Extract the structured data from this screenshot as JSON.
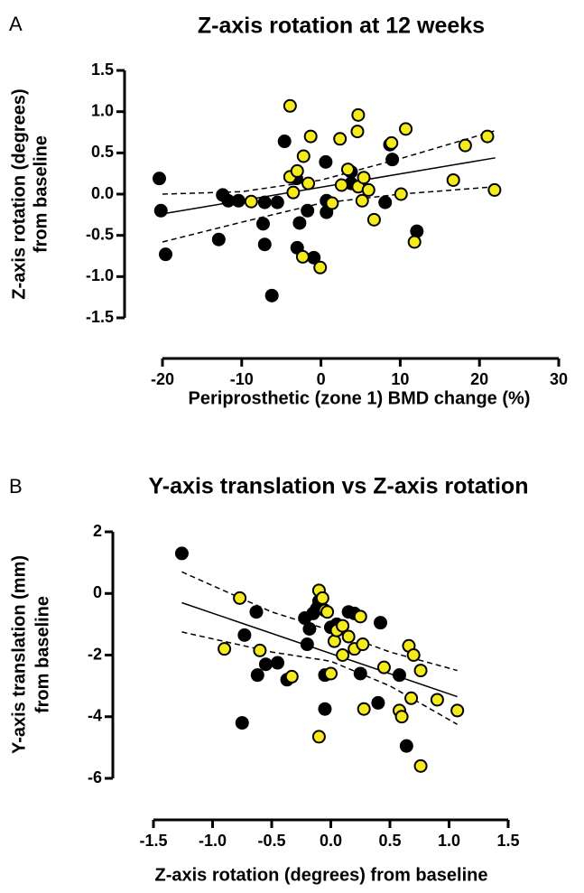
{
  "chart_data": [
    {
      "type": "scatter",
      "panel": "A",
      "title": "Z-axis rotation at 12 weeks",
      "x_label": "Periprosthetic (zone 1) BMD change (%)",
      "y_label": [
        "Z-axis rotation (degrees)",
        "from baseline"
      ],
      "xlim": [
        -20,
        30
      ],
      "xticks": [
        -20,
        -10,
        0,
        10,
        20,
        30
      ],
      "ylim": [
        -1.5,
        1.5
      ],
      "yticks": [
        1.5,
        {
          "value": 1.0,
          "label": "1.0"
        },
        0.5,
        {
          "value": 0.0,
          "label": "0.0"
        },
        -0.5,
        {
          "value": -1.0,
          "label": "-1.0"
        },
        -1.5
      ],
      "series": [
        {
          "color": "#000000",
          "x": [
            -20.4,
            -20.2,
            -19.6,
            -12.4,
            -11.7,
            -12.9,
            -10.4,
            -7.3,
            -7.1,
            -7.1,
            -5.5,
            -6.2,
            -4.6,
            -3.1,
            -2.7,
            -3.0,
            -1.7,
            -0.9,
            0.6,
            0.7,
            0.7,
            3.8,
            3.8,
            9.0,
            8.1,
            8.7,
            12.1
          ],
          "y": [
            0.19,
            -0.2,
            -0.73,
            -0.01,
            -0.08,
            -0.55,
            -0.08,
            -0.36,
            -0.61,
            -0.1,
            -0.1,
            -1.23,
            0.64,
            0.19,
            -0.35,
            -0.65,
            -0.2,
            -0.77,
            0.39,
            -0.22,
            -0.08,
            0.27,
            0.13,
            0.42,
            -0.1,
            0.6,
            -0.45
          ]
        },
        {
          "color": "#f4ea1c",
          "x": [
            -8.8,
            -3.9,
            -3.9,
            -3.0,
            -2.2,
            -1.3,
            -1.6,
            -2.3,
            -3.5,
            -0.1,
            1.4,
            2.4,
            2.6,
            3.4,
            4.6,
            4.7,
            4.7,
            5.4,
            6.0,
            5.2,
            6.7,
            8.9,
            10.1,
            10.7,
            11.8,
            16.7,
            18.2,
            21.0,
            21.9
          ],
          "y": [
            -0.09,
            0.21,
            1.07,
            0.28,
            0.46,
            0.7,
            0.13,
            -0.76,
            0.02,
            -0.89,
            -0.11,
            0.67,
            0.11,
            0.3,
            0.76,
            0.96,
            0.09,
            0.2,
            0.05,
            -0.08,
            -0.31,
            0.62,
            0.0,
            0.79,
            -0.58,
            0.17,
            0.59,
            0.7,
            0.05
          ]
        }
      ],
      "fit": {
        "x": [
          -20,
          22
        ],
        "y": [
          -0.24,
          0.44
        ]
      },
      "ci_upper": {
        "x": [
          -20,
          -10,
          0,
          10,
          22
        ],
        "y": [
          0.0,
          0.03,
          0.17,
          0.43,
          0.77
        ]
      },
      "ci_lower": {
        "x": [
          -20,
          -10,
          0,
          10,
          22
        ],
        "y": [
          -0.58,
          -0.34,
          -0.11,
          0.0,
          0.09
        ]
      }
    },
    {
      "type": "scatter",
      "panel": "B",
      "title": "Y-axis translation vs Z-axis rotation",
      "x_label": "Z-axis rotation (degrees) from baseline",
      "y_label": [
        "Y-axis translation (mm)",
        "from baseline"
      ],
      "xlim": [
        -1.5,
        1.5
      ],
      "xticks": [
        -1.5,
        {
          "value": -1.0,
          "label": "-1.0"
        },
        -0.5,
        {
          "value": 0.0,
          "label": "0.0"
        },
        0.5,
        {
          "value": 1.0,
          "label": "1.0"
        },
        1.5
      ],
      "ylim": [
        -6,
        2
      ],
      "yticks": [
        2,
        0,
        -2,
        -4,
        -6
      ],
      "series": [
        {
          "color": "#000000",
          "x": [
            -1.26,
            -0.75,
            -0.73,
            -0.63,
            -0.62,
            -0.55,
            -0.45,
            -0.37,
            -0.22,
            -0.2,
            -0.18,
            -0.15,
            -0.12,
            -0.1,
            -0.08,
            -0.1,
            -0.05,
            -0.05,
            0.0,
            0.05,
            0.15,
            0.2,
            0.25,
            0.4,
            0.42,
            0.58,
            0.64
          ],
          "y": [
            1.3,
            -4.2,
            -1.35,
            -0.6,
            -2.65,
            -2.3,
            -2.25,
            -2.8,
            -0.8,
            -1.65,
            -1.15,
            -0.65,
            -0.5,
            -0.35,
            -0.2,
            -0.25,
            -2.65,
            -3.75,
            -1.1,
            -1.0,
            -0.6,
            -0.65,
            -2.6,
            -3.55,
            -0.95,
            -2.65,
            -4.95
          ]
        },
        {
          "color": "#f4ea1c",
          "x": [
            -0.9,
            -0.77,
            -0.6,
            -0.33,
            -0.1,
            -0.1,
            -0.07,
            -0.05,
            -0.03,
            0.0,
            0.03,
            0.05,
            0.1,
            0.1,
            0.15,
            0.2,
            0.25,
            0.27,
            0.28,
            0.45,
            0.58,
            0.6,
            0.66,
            0.68,
            0.7,
            0.76,
            0.76,
            0.9,
            1.07
          ],
          "y": [
            -1.8,
            -0.15,
            -1.85,
            -2.7,
            -4.65,
            0.1,
            -0.15,
            -0.55,
            -0.6,
            -2.6,
            -1.55,
            -1.2,
            -1.05,
            -2.0,
            -1.4,
            -1.8,
            -0.75,
            -1.65,
            -3.75,
            -2.4,
            -3.8,
            -4.0,
            -1.7,
            -3.4,
            -2.0,
            -2.5,
            -5.6,
            -3.45,
            -3.8
          ]
        }
      ],
      "fit": {
        "x": [
          -1.26,
          1.07
        ],
        "y": [
          -0.3,
          -3.35
        ]
      },
      "ci_upper": {
        "x": [
          -1.26,
          -0.5,
          0,
          0.5,
          1.07
        ],
        "y": [
          0.7,
          -0.6,
          -1.2,
          -1.9,
          -2.5
        ]
      },
      "ci_lower": {
        "x": [
          -1.26,
          -0.5,
          0,
          0.5,
          1.07
        ],
        "y": [
          -1.25,
          -1.9,
          -2.2,
          -3.0,
          -4.25
        ]
      }
    }
  ]
}
